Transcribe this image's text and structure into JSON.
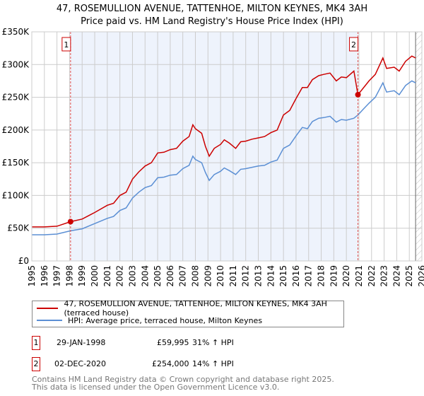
{
  "chart_data": {
    "type": "line",
    "title": "47, ROSEMULLION AVENUE, TATTENHOE, MILTON KEYNES, MK4 3AH",
    "subtitle": "Price paid vs. HM Land Registry's House Price Index (HPI)",
    "xlim": [
      1995,
      2026
    ],
    "ylim": [
      0,
      350000
    ],
    "x_ticks": [
      "1995",
      "1996",
      "1997",
      "1998",
      "1999",
      "2000",
      "2001",
      "2002",
      "2003",
      "2004",
      "2005",
      "2006",
      "2007",
      "2008",
      "2009",
      "2010",
      "2011",
      "2012",
      "2013",
      "2014",
      "2015",
      "2016",
      "2017",
      "2018",
      "2019",
      "2020",
      "2021",
      "2022",
      "2023",
      "2024",
      "2025",
      "2026"
    ],
    "y_ticks": [
      {
        "v": 0,
        "label": "£0"
      },
      {
        "v": 50000,
        "label": "£50K"
      },
      {
        "v": 100000,
        "label": "£100K"
      },
      {
        "v": 150000,
        "label": "£150K"
      },
      {
        "v": 200000,
        "label": "£200K"
      },
      {
        "v": 250000,
        "label": "£250K"
      },
      {
        "v": 300000,
        "label": "£300K"
      },
      {
        "v": 350000,
        "label": "£350K"
      }
    ],
    "grid": true,
    "series": [
      {
        "name": "47, ROSEMULLION AVENUE, TATTENHOE, MILTON KEYNES, MK4 3AH (terraced house)",
        "color": "#cc0000",
        "x": [
          1995,
          1996,
          1997,
          1998.08,
          1999,
          2000,
          2001,
          2001.5,
          2002,
          2002.5,
          2003,
          2003.5,
          2004,
          2004.5,
          2005,
          2005.5,
          2006,
          2006.5,
          2007,
          2007.5,
          2007.8,
          2008,
          2008.5,
          2008.8,
          2009.1,
          2009.5,
          2010,
          2010.3,
          2010.7,
          2011.2,
          2011.6,
          2012,
          2012.5,
          2013,
          2013.5,
          2014,
          2014.5,
          2015,
          2015.5,
          2016,
          2016.5,
          2016.9,
          2017.3,
          2017.8,
          2018.2,
          2018.7,
          2019.2,
          2019.6,
          2020,
          2020.6,
          2020.92,
          2021.3,
          2021.8,
          2022.3,
          2022.9,
          2023.2,
          2023.8,
          2024.2,
          2024.7,
          2025.2,
          2025.5
        ],
        "y": [
          52000,
          52000,
          53000,
          59995,
          64000,
          74000,
          85000,
          88000,
          100000,
          105000,
          125000,
          136000,
          145000,
          150000,
          165000,
          166000,
          170000,
          172000,
          183000,
          190000,
          208000,
          202000,
          195000,
          175000,
          160000,
          172000,
          178000,
          185000,
          180000,
          172000,
          182000,
          183000,
          186000,
          188000,
          190000,
          196000,
          200000,
          223000,
          230000,
          248000,
          265000,
          265000,
          277000,
          283000,
          285000,
          287000,
          275000,
          281000,
          280000,
          290000,
          254000,
          263000,
          275000,
          285000,
          310000,
          294000,
          296000,
          290000,
          305000,
          313000,
          310000
        ]
      },
      {
        "name": "HPI: Average price, terraced house, Milton Keynes",
        "color": "#5b8fd4",
        "x": [
          1995,
          1996,
          1997,
          1998.08,
          1999,
          2000,
          2001,
          2001.5,
          2002,
          2002.5,
          2003,
          2003.5,
          2004,
          2004.5,
          2005,
          2005.5,
          2006,
          2006.5,
          2007,
          2007.5,
          2007.8,
          2008,
          2008.5,
          2008.8,
          2009.1,
          2009.5,
          2010,
          2010.3,
          2010.7,
          2011.2,
          2011.6,
          2012,
          2012.5,
          2013,
          2013.5,
          2014,
          2014.5,
          2015,
          2015.5,
          2016,
          2016.5,
          2016.9,
          2017.3,
          2017.8,
          2018.2,
          2018.7,
          2019.2,
          2019.6,
          2020,
          2020.6,
          2020.92,
          2021.3,
          2021.8,
          2022.3,
          2022.9,
          2023.2,
          2023.8,
          2024.2,
          2024.7,
          2025.2,
          2025.5
        ],
        "y": [
          40000,
          40000,
          41000,
          46000,
          49000,
          57000,
          65000,
          68000,
          77000,
          81000,
          96000,
          105000,
          112000,
          115000,
          127000,
          128000,
          131000,
          132000,
          141000,
          146000,
          160000,
          155000,
          150000,
          135000,
          123000,
          132000,
          137000,
          142000,
          138000,
          132000,
          140000,
          141000,
          143000,
          145000,
          146000,
          151000,
          154000,
          172000,
          177000,
          191000,
          204000,
          202000,
          213000,
          218000,
          219000,
          221000,
          212000,
          216000,
          215000,
          218000,
          223000,
          231000,
          241000,
          250000,
          272000,
          258000,
          260000,
          254000,
          268000,
          275000,
          272000
        ]
      }
    ],
    "sales": [
      {
        "label": "1",
        "x": 1998.08,
        "y": 59995
      },
      {
        "label": "2",
        "x": 2020.92,
        "y": 254000
      }
    ],
    "forecast_start": 2025.5
  },
  "legend": {
    "red": "47, ROSEMULLION AVENUE, TATTENHOE, MILTON KEYNES, MK4 3AH (terraced house)",
    "blue": "HPI: Average price, terraced house, Milton Keynes"
  },
  "transactions": [
    {
      "num": "1",
      "date": "29-JAN-1998",
      "price": "£59,995",
      "hpi": "31% ↑ HPI"
    },
    {
      "num": "2",
      "date": "02-DEC-2020",
      "price": "£254,000",
      "hpi": "14% ↑ HPI"
    }
  ],
  "footer": {
    "line1": "Contains HM Land Registry data © Crown copyright and database right 2025.",
    "line2": "This data is licensed under the Open Government Licence v3.0."
  }
}
